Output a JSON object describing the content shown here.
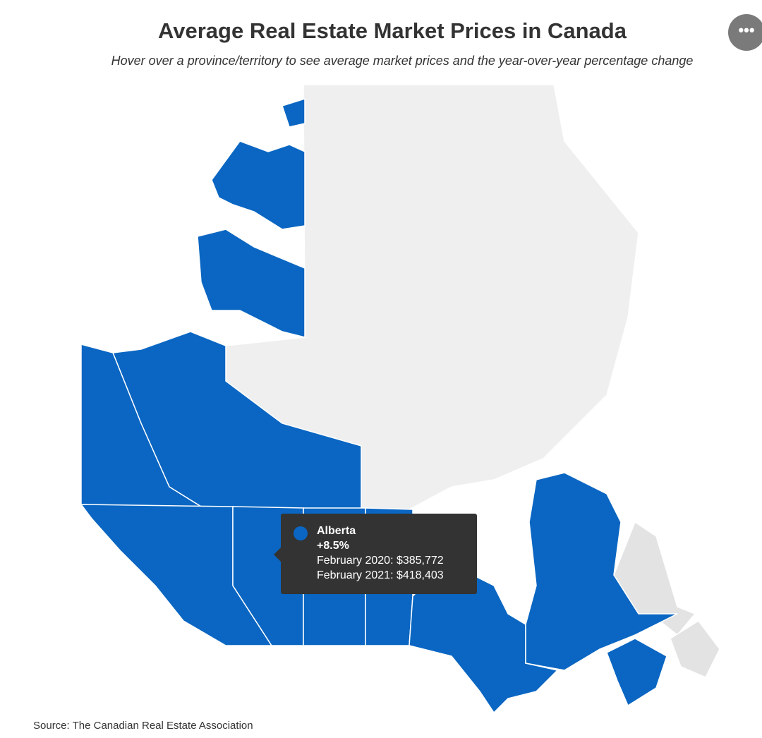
{
  "header": {
    "title": "Average Real Estate Market Prices in Canada",
    "subtitle": "Hover over a province/territory to see average market prices and the year-over-year percentage change"
  },
  "tooltip": {
    "region": "Alberta",
    "change": "+8.5%",
    "lines": [
      "February 2020: $385,772",
      "February 2021: $418,403"
    ]
  },
  "source": "Source: The Canadian Real Estate Association"
}
